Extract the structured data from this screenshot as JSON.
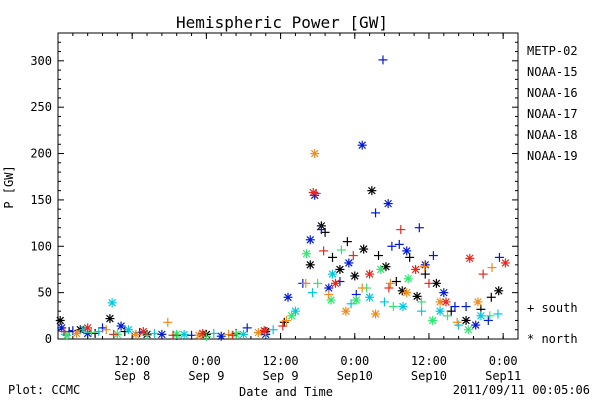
{
  "chart_data": {
    "type": "scatter",
    "title": "Hemispheric Power [GW]",
    "ylabel": "P [GW]",
    "xlabel": "Date and Time",
    "ylim": [
      0,
      330
    ],
    "xlim": [
      0,
      62
    ],
    "yticks": [
      0,
      50,
      100,
      150,
      200,
      250,
      300
    ],
    "xticks": [
      {
        "x": 10,
        "line1": "12:00",
        "line2": "Sep 8"
      },
      {
        "x": 20,
        "line1": "0:00",
        "line2": "Sep 9"
      },
      {
        "x": 30,
        "line1": "12:00",
        "line2": "Sep 9"
      },
      {
        "x": 40,
        "line1": "0:00",
        "line2": "Sep10"
      },
      {
        "x": 50,
        "line1": "12:00",
        "line2": "Sep10"
      },
      {
        "x": 60,
        "line1": "0:00",
        "line2": "Sep11"
      }
    ],
    "markers": {
      "south": "+",
      "north": "*"
    },
    "series": [
      {
        "name": "METP-02",
        "color": "#000000",
        "points": [
          {
            "x": 0.3,
            "y": 20,
            "m": "north"
          },
          {
            "x": 1.5,
            "y": 8,
            "m": "south"
          },
          {
            "x": 3,
            "y": 10,
            "m": "north"
          },
          {
            "x": 5,
            "y": 6,
            "m": "south"
          },
          {
            "x": 7,
            "y": 22,
            "m": "north"
          },
          {
            "x": 9,
            "y": 8,
            "m": "south"
          },
          {
            "x": 12,
            "y": 5,
            "m": "north"
          },
          {
            "x": 16,
            "y": 4,
            "m": "south"
          },
          {
            "x": 20,
            "y": 5,
            "m": "north"
          },
          {
            "x": 24,
            "y": 6,
            "m": "south"
          },
          {
            "x": 28,
            "y": 8,
            "m": "north"
          },
          {
            "x": 30.5,
            "y": 18,
            "m": "south"
          },
          {
            "x": 34,
            "y": 80,
            "m": "north"
          },
          {
            "x": 35.5,
            "y": 122,
            "m": "north"
          },
          {
            "x": 36,
            "y": 115,
            "m": "south"
          },
          {
            "x": 37,
            "y": 88,
            "m": "south"
          },
          {
            "x": 38,
            "y": 75,
            "m": "north"
          },
          {
            "x": 39,
            "y": 105,
            "m": "south"
          },
          {
            "x": 40,
            "y": 68,
            "m": "north"
          },
          {
            "x": 41.2,
            "y": 97,
            "m": "north"
          },
          {
            "x": 42.3,
            "y": 160,
            "m": "north"
          },
          {
            "x": 43.2,
            "y": 90,
            "m": "south"
          },
          {
            "x": 44.2,
            "y": 78,
            "m": "north"
          },
          {
            "x": 45.6,
            "y": 62,
            "m": "south"
          },
          {
            "x": 46.4,
            "y": 52,
            "m": "north"
          },
          {
            "x": 47.4,
            "y": 88,
            "m": "south"
          },
          {
            "x": 48.4,
            "y": 46,
            "m": "north"
          },
          {
            "x": 49.5,
            "y": 70,
            "m": "south"
          },
          {
            "x": 51,
            "y": 60,
            "m": "north"
          },
          {
            "x": 53,
            "y": 30,
            "m": "south"
          },
          {
            "x": 55,
            "y": 20,
            "m": "north"
          },
          {
            "x": 57,
            "y": 32,
            "m": "south"
          },
          {
            "x": 58.4,
            "y": 45,
            "m": "south"
          },
          {
            "x": 59.4,
            "y": 52,
            "m": "north"
          }
        ]
      },
      {
        "name": "NOAA-15",
        "color": "#0018d8",
        "points": [
          {
            "x": 0.5,
            "y": 12,
            "m": "north"
          },
          {
            "x": 2,
            "y": 9,
            "m": "south"
          },
          {
            "x": 4,
            "y": 6,
            "m": "north"
          },
          {
            "x": 6,
            "y": 12,
            "m": "south"
          },
          {
            "x": 8.5,
            "y": 14,
            "m": "north"
          },
          {
            "x": 11,
            "y": 7,
            "m": "south"
          },
          {
            "x": 14,
            "y": 5,
            "m": "north"
          },
          {
            "x": 18,
            "y": 4,
            "m": "south"
          },
          {
            "x": 22,
            "y": 3,
            "m": "north"
          },
          {
            "x": 25.5,
            "y": 12,
            "m": "south"
          },
          {
            "x": 28,
            "y": 5,
            "m": "north"
          },
          {
            "x": 31,
            "y": 45,
            "m": "north"
          },
          {
            "x": 33,
            "y": 60,
            "m": "south"
          },
          {
            "x": 34,
            "y": 107,
            "m": "north"
          },
          {
            "x": 34.6,
            "y": 155,
            "m": "north"
          },
          {
            "x": 35.5,
            "y": 118,
            "m": "south"
          },
          {
            "x": 36.5,
            "y": 55,
            "m": "north"
          },
          {
            "x": 38,
            "y": 62,
            "m": "south"
          },
          {
            "x": 39.2,
            "y": 82,
            "m": "north"
          },
          {
            "x": 40.2,
            "y": 48,
            "m": "south"
          },
          {
            "x": 41,
            "y": 209,
            "m": "north"
          },
          {
            "x": 42.8,
            "y": 136,
            "m": "south"
          },
          {
            "x": 43.8,
            "y": 301,
            "m": "south"
          },
          {
            "x": 44.5,
            "y": 146,
            "m": "north"
          },
          {
            "x": 45,
            "y": 100,
            "m": "south"
          },
          {
            "x": 46,
            "y": 102,
            "m": "south"
          },
          {
            "x": 47,
            "y": 95,
            "m": "north"
          },
          {
            "x": 48.7,
            "y": 120,
            "m": "south"
          },
          {
            "x": 49.5,
            "y": 80,
            "m": "north"
          },
          {
            "x": 50.6,
            "y": 90,
            "m": "south"
          },
          {
            "x": 52,
            "y": 50,
            "m": "north"
          },
          {
            "x": 53.5,
            "y": 35,
            "m": "south"
          },
          {
            "x": 55,
            "y": 35,
            "m": "south"
          },
          {
            "x": 56.3,
            "y": 15,
            "m": "north"
          },
          {
            "x": 58,
            "y": 20,
            "m": "south"
          },
          {
            "x": 59.5,
            "y": 88,
            "m": "south"
          }
        ]
      },
      {
        "name": "NOAA-16",
        "color": "#00c8e0",
        "points": [
          {
            "x": 1,
            "y": 5,
            "m": "south"
          },
          {
            "x": 3.5,
            "y": 10,
            "m": "north"
          },
          {
            "x": 5.5,
            "y": 8,
            "m": "south"
          },
          {
            "x": 7.3,
            "y": 39,
            "m": "north"
          },
          {
            "x": 9.5,
            "y": 10,
            "m": "north"
          },
          {
            "x": 13,
            "y": 6,
            "m": "south"
          },
          {
            "x": 17,
            "y": 5,
            "m": "north"
          },
          {
            "x": 21,
            "y": 6,
            "m": "south"
          },
          {
            "x": 25,
            "y": 5,
            "m": "north"
          },
          {
            "x": 29,
            "y": 10,
            "m": "south"
          },
          {
            "x": 32,
            "y": 30,
            "m": "north"
          },
          {
            "x": 34.3,
            "y": 50,
            "m": "south"
          },
          {
            "x": 37,
            "y": 70,
            "m": "north"
          },
          {
            "x": 39.5,
            "y": 38,
            "m": "south"
          },
          {
            "x": 42,
            "y": 45,
            "m": "north"
          },
          {
            "x": 44,
            "y": 40,
            "m": "south"
          },
          {
            "x": 46.5,
            "y": 35,
            "m": "north"
          },
          {
            "x": 49,
            "y": 30,
            "m": "south"
          },
          {
            "x": 51.5,
            "y": 30,
            "m": "north"
          },
          {
            "x": 54,
            "y": 15,
            "m": "south"
          },
          {
            "x": 57,
            "y": 25,
            "m": "north"
          },
          {
            "x": 59.3,
            "y": 27,
            "m": "south"
          }
        ]
      },
      {
        "name": "NOAA-17",
        "color": "#30e870",
        "points": [
          {
            "x": 1.2,
            "y": 4,
            "m": "north"
          },
          {
            "x": 4.5,
            "y": 7,
            "m": "south"
          },
          {
            "x": 8,
            "y": 5,
            "m": "north"
          },
          {
            "x": 12,
            "y": 4,
            "m": "south"
          },
          {
            "x": 16,
            "y": 5,
            "m": "north"
          },
          {
            "x": 20,
            "y": 3,
            "m": "south"
          },
          {
            "x": 24,
            "y": 5,
            "m": "north"
          },
          {
            "x": 28,
            "y": 6,
            "m": "south"
          },
          {
            "x": 31.5,
            "y": 25,
            "m": "north"
          },
          {
            "x": 33.5,
            "y": 92,
            "m": "north"
          },
          {
            "x": 35,
            "y": 60,
            "m": "south"
          },
          {
            "x": 36.8,
            "y": 42,
            "m": "north"
          },
          {
            "x": 38.2,
            "y": 96,
            "m": "south"
          },
          {
            "x": 40.2,
            "y": 42,
            "m": "north"
          },
          {
            "x": 41.6,
            "y": 55,
            "m": "south"
          },
          {
            "x": 43.5,
            "y": 75,
            "m": "north"
          },
          {
            "x": 45.2,
            "y": 35,
            "m": "south"
          },
          {
            "x": 47.2,
            "y": 65,
            "m": "north"
          },
          {
            "x": 49,
            "y": 40,
            "m": "south"
          },
          {
            "x": 50.5,
            "y": 20,
            "m": "north"
          },
          {
            "x": 52.5,
            "y": 25,
            "m": "south"
          },
          {
            "x": 55.3,
            "y": 10,
            "m": "north"
          },
          {
            "x": 58.2,
            "y": 25,
            "m": "south"
          }
        ]
      },
      {
        "name": "NOAA-18",
        "color": "#f08c1c",
        "points": [
          {
            "x": 2.5,
            "y": 6,
            "m": "north"
          },
          {
            "x": 6.5,
            "y": 10,
            "m": "south"
          },
          {
            "x": 10.5,
            "y": 5,
            "m": "north"
          },
          {
            "x": 14.8,
            "y": 18,
            "m": "south"
          },
          {
            "x": 19,
            "y": 4,
            "m": "north"
          },
          {
            "x": 23,
            "y": 5,
            "m": "south"
          },
          {
            "x": 27,
            "y": 7,
            "m": "north"
          },
          {
            "x": 30.8,
            "y": 20,
            "m": "south"
          },
          {
            "x": 33.4,
            "y": 60,
            "m": "south"
          },
          {
            "x": 34.6,
            "y": 200,
            "m": "north"
          },
          {
            "x": 36.5,
            "y": 48,
            "m": "south"
          },
          {
            "x": 38.8,
            "y": 30,
            "m": "north"
          },
          {
            "x": 41,
            "y": 55,
            "m": "south"
          },
          {
            "x": 42.8,
            "y": 27,
            "m": "north"
          },
          {
            "x": 44.8,
            "y": 60,
            "m": "south"
          },
          {
            "x": 47,
            "y": 50,
            "m": "north"
          },
          {
            "x": 49.4,
            "y": 78,
            "m": "south"
          },
          {
            "x": 51.5,
            "y": 40,
            "m": "north"
          },
          {
            "x": 53.8,
            "y": 18,
            "m": "south"
          },
          {
            "x": 56.6,
            "y": 40,
            "m": "north"
          },
          {
            "x": 58.5,
            "y": 77,
            "m": "south"
          }
        ]
      },
      {
        "name": "NOAA-19",
        "color": "#e8281c",
        "points": [
          {
            "x": 0.8,
            "y": 8,
            "m": "south"
          },
          {
            "x": 4,
            "y": 12,
            "m": "north"
          },
          {
            "x": 7.5,
            "y": 5,
            "m": "south"
          },
          {
            "x": 11.5,
            "y": 8,
            "m": "north"
          },
          {
            "x": 15.5,
            "y": 4,
            "m": "south"
          },
          {
            "x": 19.5,
            "y": 6,
            "m": "north"
          },
          {
            "x": 23.5,
            "y": 4,
            "m": "south"
          },
          {
            "x": 27.8,
            "y": 9,
            "m": "north"
          },
          {
            "x": 30.3,
            "y": 14,
            "m": "south"
          },
          {
            "x": 34.4,
            "y": 158,
            "m": "north"
          },
          {
            "x": 34.8,
            "y": 157,
            "m": "south"
          },
          {
            "x": 35.8,
            "y": 95,
            "m": "south"
          },
          {
            "x": 37.4,
            "y": 60,
            "m": "north"
          },
          {
            "x": 39.8,
            "y": 90,
            "m": "south"
          },
          {
            "x": 42,
            "y": 70,
            "m": "north"
          },
          {
            "x": 44.6,
            "y": 55,
            "m": "south"
          },
          {
            "x": 46.2,
            "y": 118,
            "m": "south"
          },
          {
            "x": 48.2,
            "y": 75,
            "m": "north"
          },
          {
            "x": 50,
            "y": 60,
            "m": "south"
          },
          {
            "x": 52.3,
            "y": 40,
            "m": "north"
          },
          {
            "x": 55.5,
            "y": 87,
            "m": "north"
          },
          {
            "x": 57.3,
            "y": 70,
            "m": "south"
          },
          {
            "x": 60.3,
            "y": 82,
            "m": "north"
          }
        ]
      }
    ]
  },
  "legend_keys": {
    "south_label": "+ south",
    "north_label": "* north"
  },
  "footer": {
    "plot_credit": "Plot: CCMC",
    "timestamp": "2011/09/11 00:05:06"
  }
}
